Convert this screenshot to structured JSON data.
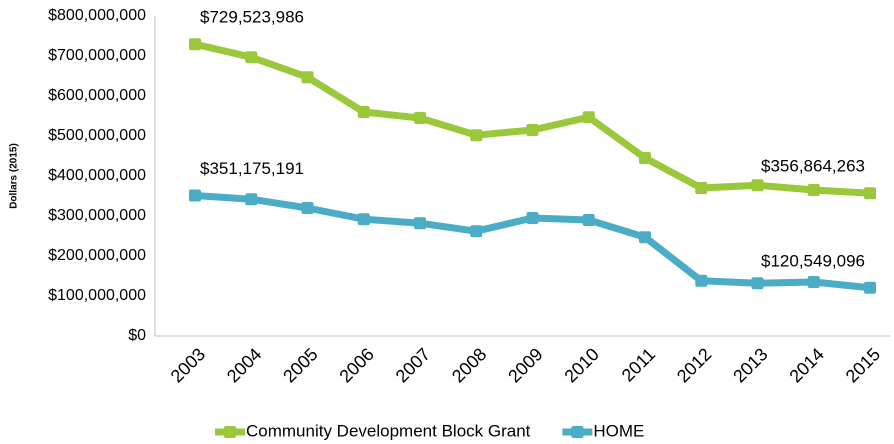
{
  "chart_data": {
    "type": "line",
    "y_label": "Dollars (2015)",
    "categories": [
      "2003",
      "2004",
      "2005",
      "2006",
      "2007",
      "2008",
      "2009",
      "2010",
      "2011",
      "2012",
      "2013",
      "2014",
      "2015"
    ],
    "series": [
      {
        "name": "Community Development Block Grant",
        "color": "#9BC83A",
        "values": [
          729523986,
          697000000,
          647000000,
          560000000,
          545000000,
          502000000,
          515000000,
          547000000,
          445000000,
          370000000,
          377000000,
          365000000,
          356864263
        ],
        "value_labels": [
          "$729,523,986",
          null,
          null,
          null,
          null,
          null,
          null,
          null,
          null,
          null,
          null,
          null,
          "$356,864,263"
        ]
      },
      {
        "name": "HOME",
        "color": "#4BACC6",
        "values": [
          351175191,
          342000000,
          320000000,
          292000000,
          282000000,
          262000000,
          295000000,
          290000000,
          247000000,
          138000000,
          132000000,
          135000000,
          120549096
        ],
        "value_labels": [
          "$351,175,191",
          null,
          null,
          null,
          null,
          null,
          null,
          null,
          null,
          null,
          null,
          null,
          "$120,549,096"
        ]
      }
    ],
    "ylim": [
      0,
      800000000
    ],
    "yticks": [
      {
        "value": 0,
        "label": "$0"
      },
      {
        "value": 100000000,
        "label": "$100,000,000"
      },
      {
        "value": 200000000,
        "label": "$200,000,000"
      },
      {
        "value": 300000000,
        "label": "$300,000,000"
      },
      {
        "value": 400000000,
        "label": "$400,000,000"
      },
      {
        "value": 500000000,
        "label": "$500,000,000"
      },
      {
        "value": 600000000,
        "label": "$600,000,000"
      },
      {
        "value": 700000000,
        "label": "$700,000,000"
      },
      {
        "value": 800000000,
        "label": "$800,000,000"
      }
    ],
    "grid": false,
    "legend": "bottom"
  }
}
